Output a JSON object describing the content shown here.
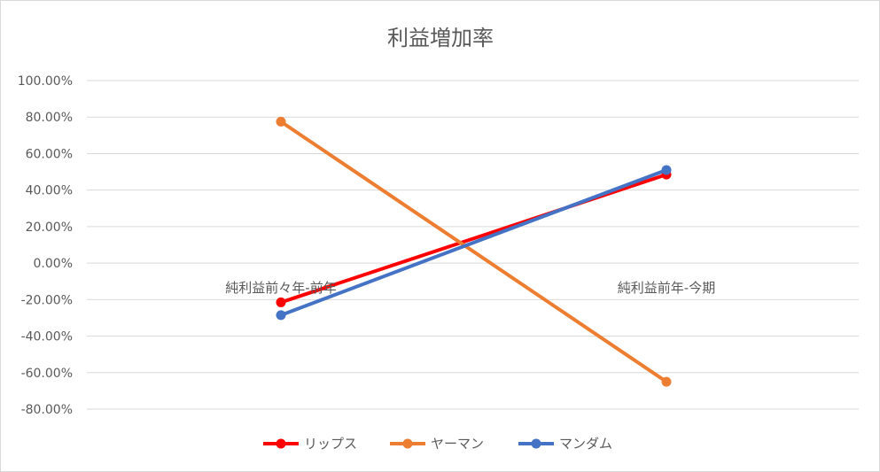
{
  "chart_data": {
    "type": "line",
    "title": "利益増加率",
    "xlabel": "",
    "ylabel": "",
    "categories": [
      "純利益前々年-前年",
      "純利益前年-今期"
    ],
    "y_ticks": [
      "100.00%",
      "80.00%",
      "60.00%",
      "40.00%",
      "20.00%",
      "0.00%",
      "-20.00%",
      "-40.00%",
      "-60.00%",
      "-80.00%"
    ],
    "ylim": [
      -0.8,
      1.0
    ],
    "grid": true,
    "legend_position": "bottom",
    "series": [
      {
        "name": "リップス",
        "color": "#ff0000",
        "values": [
          -0.215,
          0.485
        ]
      },
      {
        "name": "ヤーマン",
        "color": "#ed7d31",
        "values": [
          0.775,
          -0.65
        ]
      },
      {
        "name": "マンダム",
        "color": "#4472c4",
        "values": [
          -0.285,
          0.51
        ]
      }
    ]
  }
}
